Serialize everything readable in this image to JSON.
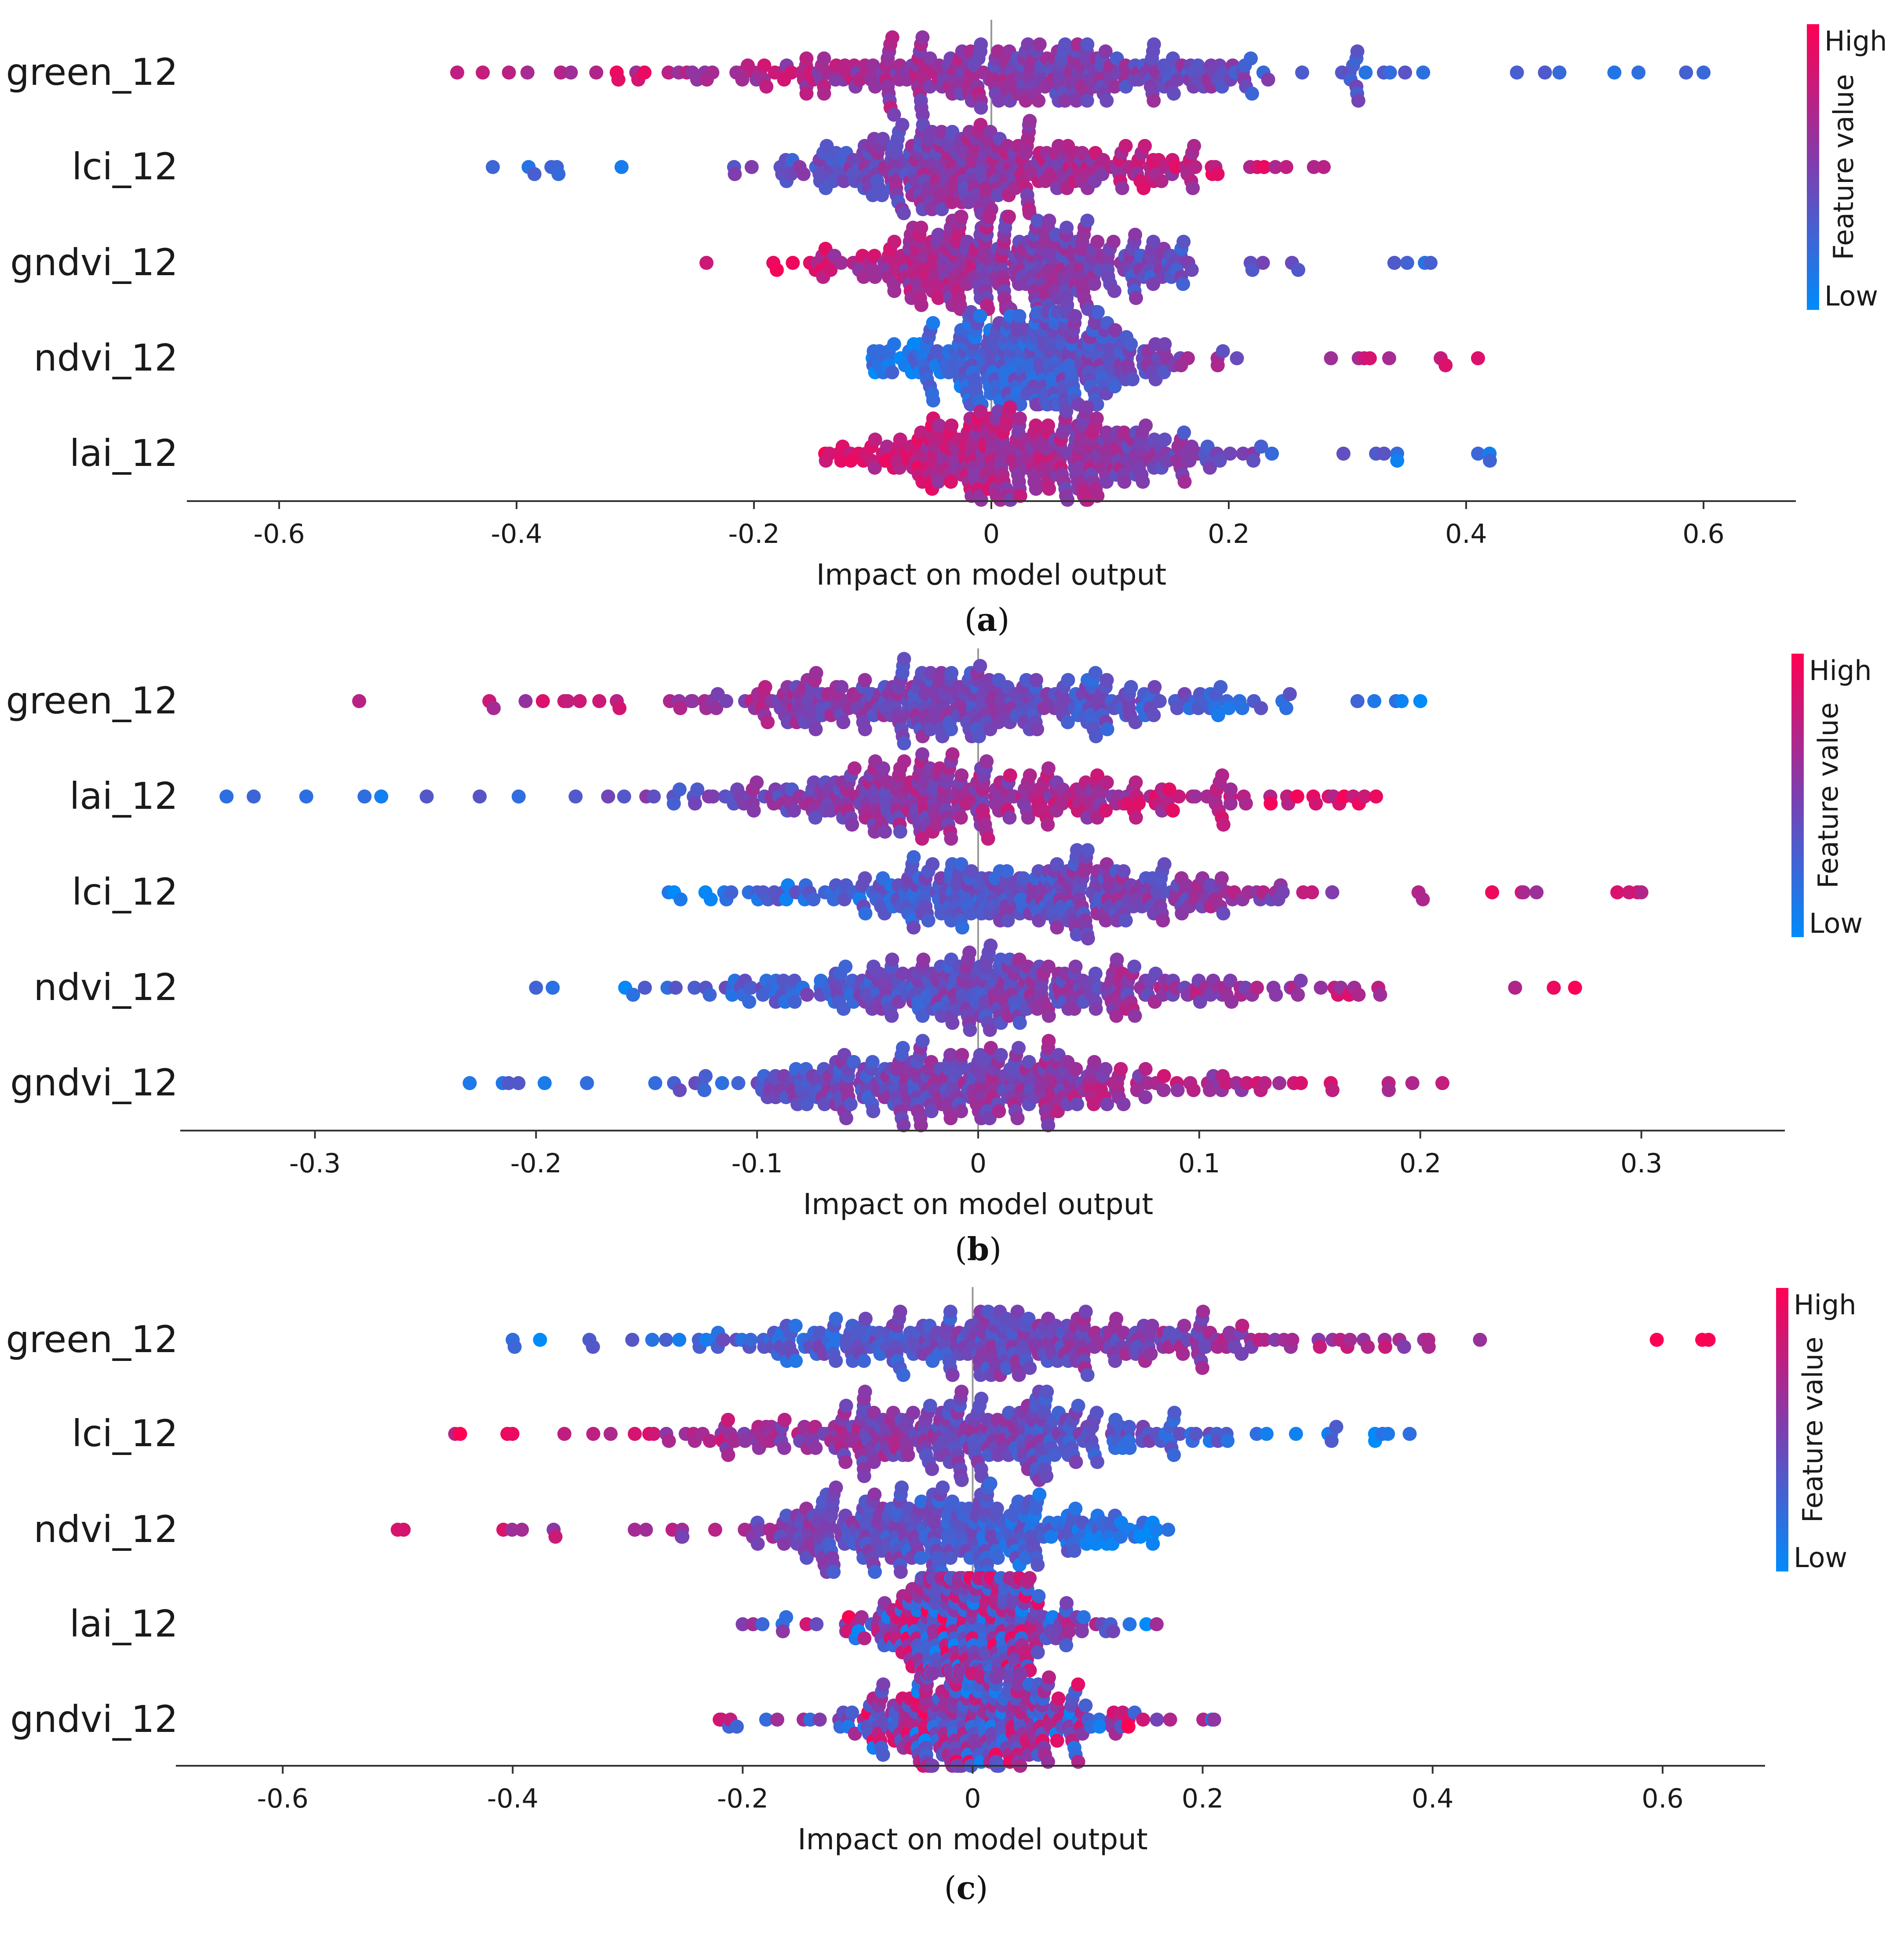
{
  "chart_data": [
    {
      "type": "scatter",
      "subtype": "beeswarm",
      "caption": "a",
      "features": [
        "green_12",
        "lci_12",
        "gndvi_12",
        "ndvi_12",
        "lai_12"
      ],
      "xlabel": "Impact on model output",
      "xlim": [
        -0.65,
        0.65
      ],
      "xticks": [
        -0.6,
        -0.4,
        -0.2,
        0,
        0.2,
        0.4,
        0.6
      ],
      "xtick_labels": [
        "-0.6",
        "-0.4",
        "-0.2",
        "0",
        "0.2",
        "0.4",
        "0.6"
      ],
      "value_ranges": [
        [
          -0.45,
          0.6
        ],
        [
          -0.42,
          0.28
        ],
        [
          -0.24,
          0.37
        ],
        [
          -0.1,
          0.41
        ],
        [
          -0.14,
          0.42
        ]
      ],
      "color_trend": [
        "high_left",
        "high_right",
        "high_left",
        "high_right",
        "high_left"
      ],
      "colorbar": {
        "high_label": "High",
        "low_label": "Low",
        "title": "Feature value",
        "high_color": "#ff0052",
        "low_color": "#008bfb"
      }
    },
    {
      "type": "scatter",
      "subtype": "beeswarm",
      "caption": "b",
      "features": [
        "green_12",
        "lai_12",
        "lci_12",
        "ndvi_12",
        "gndvi_12"
      ],
      "xlabel": "Impact on model output",
      "xlim": [
        -0.35,
        0.35
      ],
      "xticks": [
        -0.3,
        -0.2,
        -0.1,
        0,
        0.1,
        0.2,
        0.3
      ],
      "xtick_labels": [
        "-0.3",
        "-0.2",
        "-0.1",
        "0",
        "0.1",
        "0.2",
        "0.3"
      ],
      "value_ranges": [
        [
          -0.28,
          0.2
        ],
        [
          -0.34,
          0.18
        ],
        [
          -0.14,
          0.3
        ],
        [
          -0.2,
          0.27
        ],
        [
          -0.23,
          0.21
        ]
      ],
      "color_trend": [
        "high_left",
        "high_right",
        "high_right",
        "high_right",
        "high_right"
      ],
      "colorbar": {
        "high_label": "High",
        "low_label": "Low",
        "title": "Feature value",
        "high_color": "#ff0052",
        "low_color": "#008bfb"
      }
    },
    {
      "type": "scatter",
      "subtype": "beeswarm",
      "caption": "c",
      "features": [
        "green_12",
        "lci_12",
        "ndvi_12",
        "lai_12",
        "gndvi_12"
      ],
      "xlabel": "Impact on model output",
      "xlim": [
        -0.67,
        0.67
      ],
      "xticks": [
        -0.6,
        -0.4,
        -0.2,
        0,
        0.2,
        0.4,
        0.6
      ],
      "xtick_labels": [
        "-0.6",
        "-0.4",
        "-0.2",
        "0",
        "0.2",
        "0.4",
        "0.6"
      ],
      "value_ranges": [
        [
          -0.4,
          0.64
        ],
        [
          -0.45,
          0.38
        ],
        [
          -0.5,
          0.17
        ],
        [
          -0.2,
          0.16
        ],
        [
          -0.22,
          0.21
        ]
      ],
      "color_trend": [
        "high_right",
        "high_left",
        "high_left",
        "mixed",
        "mixed"
      ],
      "colorbar": {
        "high_label": "High",
        "low_label": "Low",
        "title": "Feature value",
        "high_color": "#ff0052",
        "low_color": "#008bfb"
      }
    }
  ]
}
